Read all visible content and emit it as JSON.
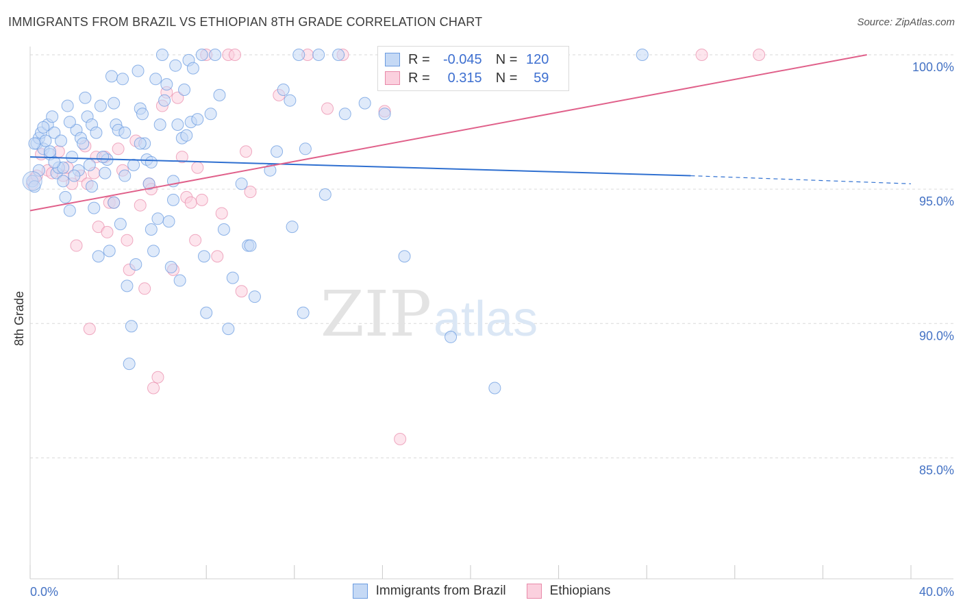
{
  "header": {
    "title": "IMMIGRANTS FROM BRAZIL VS ETHIOPIAN 8TH GRADE CORRELATION CHART",
    "source": "Source: ZipAtlas.com"
  },
  "watermark": {
    "zip": "ZIP",
    "atlas": "atlas"
  },
  "legend": {
    "rows": [
      {
        "r_label": "R =",
        "r_value": "-0.045",
        "n_label": "N =",
        "n_value": "120",
        "color": "#6a9be0",
        "fill": "#c5d9f5"
      },
      {
        "r_label": "R =",
        "r_value": "0.315",
        "n_label": "N =",
        "n_value": "59",
        "color": "#e888a8",
        "fill": "#fbd0de"
      }
    ]
  },
  "bottom_legend": [
    "Immigrants from Brazil",
    "Ethiopians"
  ],
  "colors": {
    "blue_line": "#2e6fd0",
    "pink_line": "#e0608a",
    "blue_point": "#6a9be0",
    "pink_point": "#e888a8",
    "grid": "#d9d9d9",
    "tick_text": "#4472c4"
  },
  "chart_data": {
    "type": "scatter",
    "title": "IMMIGRANTS FROM BRAZIL VS ETHIOPIAN 8TH GRADE CORRELATION CHART",
    "ylabel": "8th Grade",
    "xlabel": "",
    "xlim": [
      0,
      40
    ],
    "ylim": [
      80.5,
      100.5
    ],
    "x_tick_labels": [
      "0.0%",
      "40.0%"
    ],
    "y_ticks": [
      85,
      90,
      95,
      100
    ],
    "y_tick_labels": [
      "85.0%",
      "90.0%",
      "95.0%",
      "100.0%"
    ],
    "grid": true,
    "legend_position": "top-center",
    "series": [
      {
        "name": "Immigrants from Brazil",
        "r": -0.045,
        "n": 120,
        "trend": {
          "x": [
            0,
            30
          ],
          "y": [
            96.2,
            95.5
          ],
          "dashed_to": [
            40,
            95.2
          ]
        },
        "points": [
          [
            0.1,
            95.3
          ],
          [
            0.2,
            95.1
          ],
          [
            0.3,
            96.7
          ],
          [
            0.4,
            96.9
          ],
          [
            0.5,
            97.1
          ],
          [
            0.6,
            96.5
          ],
          [
            0.7,
            96.8
          ],
          [
            0.8,
            97.4
          ],
          [
            0.9,
            96.3
          ],
          [
            1.0,
            97.7
          ],
          [
            1.1,
            97.1
          ],
          [
            1.2,
            95.6
          ],
          [
            1.3,
            95.8
          ],
          [
            1.4,
            96.8
          ],
          [
            1.5,
            95.3
          ],
          [
            1.6,
            94.7
          ],
          [
            1.7,
            98.1
          ],
          [
            1.8,
            94.2
          ],
          [
            1.9,
            96.2
          ],
          [
            2.1,
            97.2
          ],
          [
            2.2,
            95.7
          ],
          [
            2.3,
            96.9
          ],
          [
            2.4,
            96.7
          ],
          [
            2.5,
            98.4
          ],
          [
            2.6,
            97.7
          ],
          [
            2.7,
            95.9
          ],
          [
            2.8,
            97.4
          ],
          [
            2.9,
            94.3
          ],
          [
            3.0,
            97.1
          ],
          [
            3.1,
            92.5
          ],
          [
            3.2,
            98.1
          ],
          [
            3.4,
            95.6
          ],
          [
            3.5,
            96.1
          ],
          [
            3.6,
            92.7
          ],
          [
            3.7,
            99.2
          ],
          [
            3.8,
            98.2
          ],
          [
            3.9,
            97.4
          ],
          [
            4.0,
            97.2
          ],
          [
            4.1,
            93.7
          ],
          [
            4.2,
            99.1
          ],
          [
            4.3,
            97.1
          ],
          [
            4.4,
            91.4
          ],
          [
            4.5,
            88.5
          ],
          [
            4.6,
            89.9
          ],
          [
            4.7,
            95.9
          ],
          [
            4.8,
            92.2
          ],
          [
            4.9,
            99.4
          ],
          [
            5.0,
            98.0
          ],
          [
            5.1,
            97.8
          ],
          [
            5.2,
            96.7
          ],
          [
            5.3,
            96.1
          ],
          [
            5.4,
            95.2
          ],
          [
            5.5,
            93.5
          ],
          [
            5.6,
            92.7
          ],
          [
            5.7,
            99.1
          ],
          [
            5.8,
            93.9
          ],
          [
            5.9,
            97.4
          ],
          [
            6.0,
            100.0
          ],
          [
            6.1,
            98.3
          ],
          [
            6.2,
            98.9
          ],
          [
            6.3,
            93.8
          ],
          [
            6.4,
            92.1
          ],
          [
            6.5,
            94.6
          ],
          [
            6.6,
            99.6
          ],
          [
            6.7,
            97.4
          ],
          [
            6.8,
            91.6
          ],
          [
            6.9,
            96.9
          ],
          [
            7.0,
            98.7
          ],
          [
            7.1,
            97.0
          ],
          [
            7.2,
            99.8
          ],
          [
            7.3,
            97.5
          ],
          [
            7.4,
            99.5
          ],
          [
            7.6,
            97.6
          ],
          [
            7.8,
            100.0
          ],
          [
            7.9,
            92.5
          ],
          [
            8.0,
            90.4
          ],
          [
            8.2,
            97.8
          ],
          [
            8.4,
            100.0
          ],
          [
            8.6,
            98.5
          ],
          [
            8.8,
            93.5
          ],
          [
            9.0,
            89.8
          ],
          [
            9.2,
            91.7
          ],
          [
            9.6,
            95.2
          ],
          [
            9.9,
            92.9
          ],
          [
            10.0,
            92.9
          ],
          [
            10.2,
            91.0
          ],
          [
            10.9,
            95.7
          ],
          [
            11.2,
            96.4
          ],
          [
            11.5,
            98.7
          ],
          [
            11.8,
            98.3
          ],
          [
            11.9,
            93.6
          ],
          [
            12.2,
            100.0
          ],
          [
            12.4,
            90.4
          ],
          [
            12.5,
            96.5
          ],
          [
            13.1,
            100.0
          ],
          [
            13.4,
            94.8
          ],
          [
            14.0,
            100.0
          ],
          [
            14.3,
            97.8
          ],
          [
            15.2,
            98.2
          ],
          [
            16.1,
            97.8
          ],
          [
            16.3,
            100.0
          ],
          [
            17.0,
            92.5
          ],
          [
            19.1,
            89.5
          ],
          [
            21.1,
            87.6
          ],
          [
            27.8,
            100.0
          ],
          [
            0.2,
            96.7
          ],
          [
            0.9,
            96.4
          ],
          [
            1.5,
            95.8
          ],
          [
            2.0,
            95.5
          ],
          [
            3.3,
            96.2
          ],
          [
            5.0,
            96.7
          ],
          [
            6.5,
            95.3
          ],
          [
            0.4,
            95.7
          ],
          [
            1.1,
            96.0
          ],
          [
            2.8,
            95.1
          ],
          [
            0.6,
            97.3
          ],
          [
            1.8,
            97.5
          ],
          [
            4.3,
            95.5
          ],
          [
            3.8,
            94.5
          ],
          [
            5.5,
            96.0
          ]
        ]
      },
      {
        "name": "Ethiopians",
        "r": 0.315,
        "n": 59,
        "trend": {
          "x": [
            0,
            38
          ],
          "y": [
            94.2,
            100.0
          ]
        },
        "points": [
          [
            0.1,
            95.2
          ],
          [
            0.2,
            95.4
          ],
          [
            0.5,
            96.3
          ],
          [
            0.8,
            95.7
          ],
          [
            1.0,
            95.6
          ],
          [
            1.3,
            96.4
          ],
          [
            1.5,
            95.5
          ],
          [
            1.7,
            95.8
          ],
          [
            1.9,
            95.2
          ],
          [
            2.1,
            92.9
          ],
          [
            2.3,
            95.5
          ],
          [
            2.5,
            96.6
          ],
          [
            2.6,
            95.2
          ],
          [
            2.7,
            89.8
          ],
          [
            2.9,
            95.6
          ],
          [
            3.0,
            96.2
          ],
          [
            3.1,
            93.6
          ],
          [
            3.4,
            96.2
          ],
          [
            3.5,
            93.4
          ],
          [
            3.6,
            94.5
          ],
          [
            3.8,
            94.5
          ],
          [
            4.0,
            96.5
          ],
          [
            4.2,
            95.7
          ],
          [
            4.4,
            93.1
          ],
          [
            4.5,
            92.0
          ],
          [
            4.8,
            96.8
          ],
          [
            5.0,
            94.4
          ],
          [
            5.2,
            91.3
          ],
          [
            5.4,
            95.2
          ],
          [
            5.5,
            95.0
          ],
          [
            5.6,
            87.6
          ],
          [
            5.8,
            88.0
          ],
          [
            6.0,
            98.1
          ],
          [
            6.2,
            98.6
          ],
          [
            6.5,
            92.0
          ],
          [
            6.7,
            98.4
          ],
          [
            6.9,
            96.2
          ],
          [
            7.1,
            94.7
          ],
          [
            7.3,
            94.5
          ],
          [
            7.5,
            93.1
          ],
          [
            7.6,
            95.8
          ],
          [
            7.8,
            94.6
          ],
          [
            8.0,
            100.0
          ],
          [
            8.5,
            92.5
          ],
          [
            8.7,
            94.1
          ],
          [
            9.0,
            100.0
          ],
          [
            9.3,
            100.0
          ],
          [
            9.6,
            91.2
          ],
          [
            9.8,
            96.4
          ],
          [
            10.0,
            94.9
          ],
          [
            11.3,
            98.5
          ],
          [
            12.6,
            100.0
          ],
          [
            13.5,
            98.0
          ],
          [
            14.2,
            100.0
          ],
          [
            16.1,
            97.9
          ],
          [
            16.8,
            85.7
          ],
          [
            30.5,
            100.0
          ],
          [
            33.1,
            100.0
          ],
          [
            0.3,
            95.5
          ]
        ]
      }
    ]
  }
}
